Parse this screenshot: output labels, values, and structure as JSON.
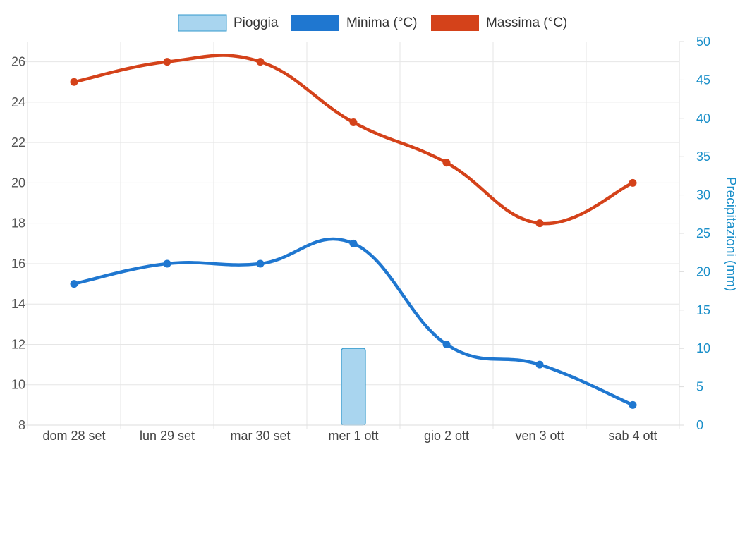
{
  "chart_data": {
    "type": "line",
    "categories": [
      "dom 28 set",
      "lun 29 set",
      "mar 30 set",
      "mer 1 ott",
      "gio 2 ott",
      "ven 3 ott",
      "sab 4 ott"
    ],
    "series": [
      {
        "name": "Pioggia",
        "type": "bar",
        "axis": "right",
        "color": "#a9d5ef",
        "border_color": "#3399cc",
        "values": [
          0,
          0,
          0,
          10,
          0,
          0,
          0
        ]
      },
      {
        "name": "Minima (°C)",
        "type": "line",
        "axis": "left",
        "color": "#1f77d0",
        "values": [
          15,
          16,
          16,
          17,
          12,
          11,
          9
        ]
      },
      {
        "name": "Massima (°C)",
        "type": "line",
        "axis": "left",
        "color": "#d4421a",
        "values": [
          25,
          26,
          26,
          23,
          21,
          18,
          20
        ]
      }
    ],
    "y_left": {
      "ylim": [
        8,
        27
      ],
      "ticks": [
        8,
        10,
        12,
        14,
        16,
        18,
        20,
        22,
        24,
        26
      ]
    },
    "y_right": {
      "ylabel": "Precipitazioni (mm)",
      "ylim": [
        0,
        50
      ],
      "ticks": [
        0,
        5,
        10,
        15,
        20,
        25,
        30,
        35,
        40,
        45,
        50
      ],
      "color": "#1a8fc9"
    },
    "legend_position": "top-center",
    "grid": true
  }
}
